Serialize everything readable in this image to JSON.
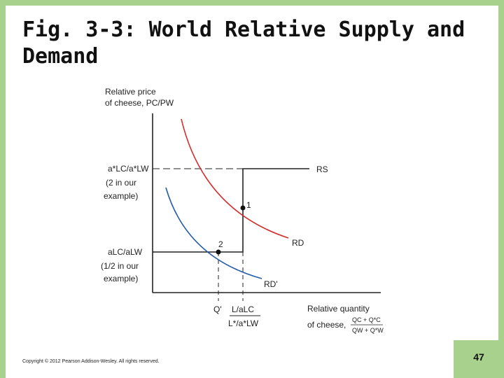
{
  "slide": {
    "title": "Fig. 3-3: World Relative Supply and Demand",
    "copyright": "Copyright © 2012 Pearson Addison-Wesley. All rights reserved.",
    "page_number": "47"
  },
  "diagram": {
    "y_axis_label_line1": "Relative price",
    "y_axis_label_line2": "of cheese, PC/PW",
    "upper_price_label": [
      "a*LC/a*LW",
      "(2 in our",
      "example)"
    ],
    "lower_price_label": [
      "aLC/aLW",
      "(1/2 in our",
      "example)"
    ],
    "x_axis_label_line1": "Relative quantity",
    "x_axis_label_line2": "of cheese,",
    "x_axis_fraction_num": "QC + Q*C",
    "x_axis_fraction_den": "QW + Q*W",
    "q_prime": "Q'",
    "l_ratio_num": "L/aLC",
    "l_ratio_den": "L*/a*LW",
    "rs": "RS",
    "rd": "RD",
    "rd_prime": "RD'",
    "point_1": "1",
    "point_2": "2"
  },
  "colors": {
    "rd_curve": "#d42a2a",
    "rd_prime_curve": "#1f5ba8",
    "accent": "#a8d18d"
  }
}
